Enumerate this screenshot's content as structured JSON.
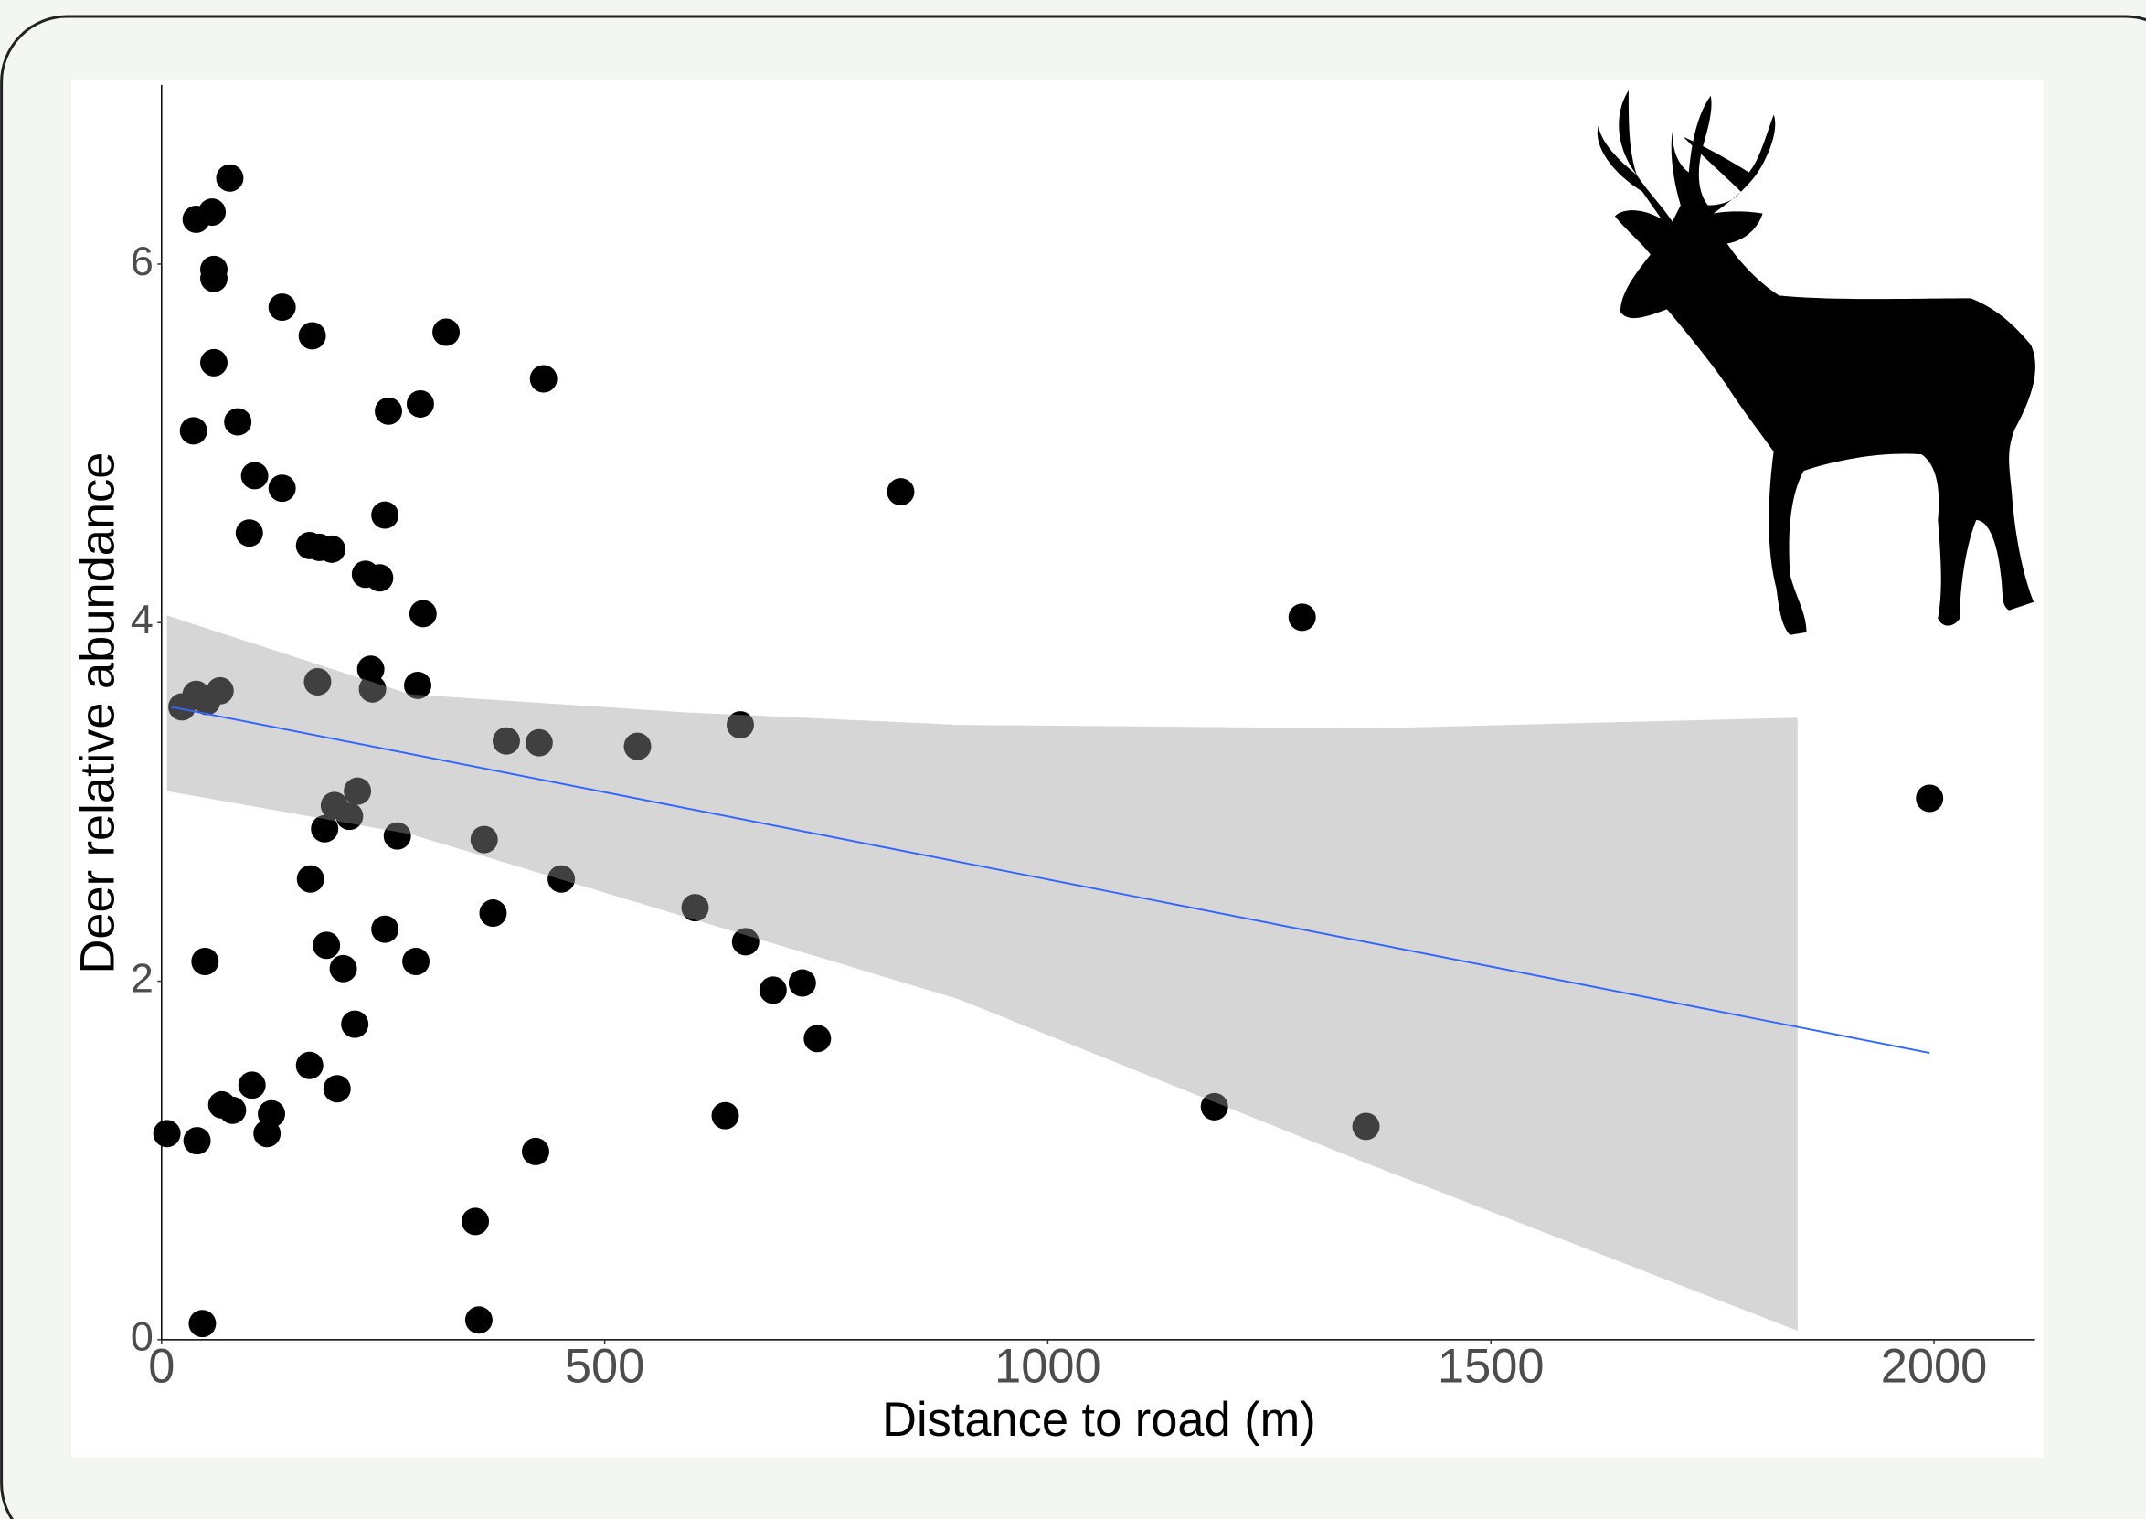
{
  "chart_data": {
    "type": "scatter",
    "xlabel": "Distance to road (m)",
    "ylabel": "Deer relative abundance",
    "xlim": [
      0,
      2114
    ],
    "ylim": [
      0,
      7
    ],
    "xticks": [
      0,
      500,
      1000,
      1500,
      2000
    ],
    "yticks": [
      0,
      2,
      4,
      6
    ],
    "color": "#000000",
    "x": [
      6,
      23,
      39,
      57,
      77,
      59,
      59,
      59,
      36,
      86,
      105,
      99,
      136,
      170,
      136,
      167,
      178,
      192,
      252,
      256,
      292,
      321,
      431,
      230,
      246,
      295,
      236,
      238,
      289,
      176,
      39,
      51,
      66,
      389,
      426,
      537,
      653,
      834,
      1287,
      1995,
      221,
      195,
      212,
      184,
      266,
      364,
      168,
      451,
      374,
      602,
      659,
      186,
      252,
      287,
      49,
      205,
      690,
      723,
      740,
      218,
      167,
      198,
      102,
      124,
      119,
      68,
      80,
      40,
      636,
      1188,
      1359,
      422,
      354,
      46,
      358
    ],
    "y": [
      1.15,
      3.53,
      6.25,
      6.29,
      6.48,
      5.97,
      5.92,
      5.45,
      5.07,
      5.12,
      4.82,
      4.5,
      5.76,
      5.6,
      4.75,
      4.43,
      4.42,
      4.41,
      4.6,
      5.18,
      5.22,
      5.62,
      5.36,
      4.27,
      4.25,
      4.05,
      3.74,
      3.63,
      3.65,
      3.67,
      3.6,
      3.56,
      3.62,
      3.34,
      3.33,
      3.31,
      3.43,
      4.73,
      4.03,
      3.02,
      3.06,
      2.98,
      2.92,
      2.85,
      2.81,
      2.79,
      2.57,
      2.57,
      2.38,
      2.41,
      2.22,
      2.2,
      2.29,
      2.11,
      2.11,
      2.07,
      1.95,
      1.99,
      1.68,
      1.76,
      1.53,
      1.4,
      1.42,
      1.26,
      1.15,
      1.31,
      1.28,
      1.11,
      1.25,
      1.3,
      1.19,
      1.05,
      0.66,
      0.09,
      0.11
    ],
    "fit": {
      "x": [
        11,
        1995
      ],
      "y": [
        3.53,
        1.6
      ],
      "color": "#3366ff"
    },
    "band": {
      "x": [
        6,
        281,
        590,
        899,
        1362,
        1846
      ],
      "lower": [
        3.06,
        2.82,
        2.36,
        1.9,
        0.98,
        0.05
      ],
      "upper": [
        4.04,
        3.6,
        3.5,
        3.43,
        3.41,
        3.47
      ],
      "color": "#9c9c9c"
    }
  }
}
